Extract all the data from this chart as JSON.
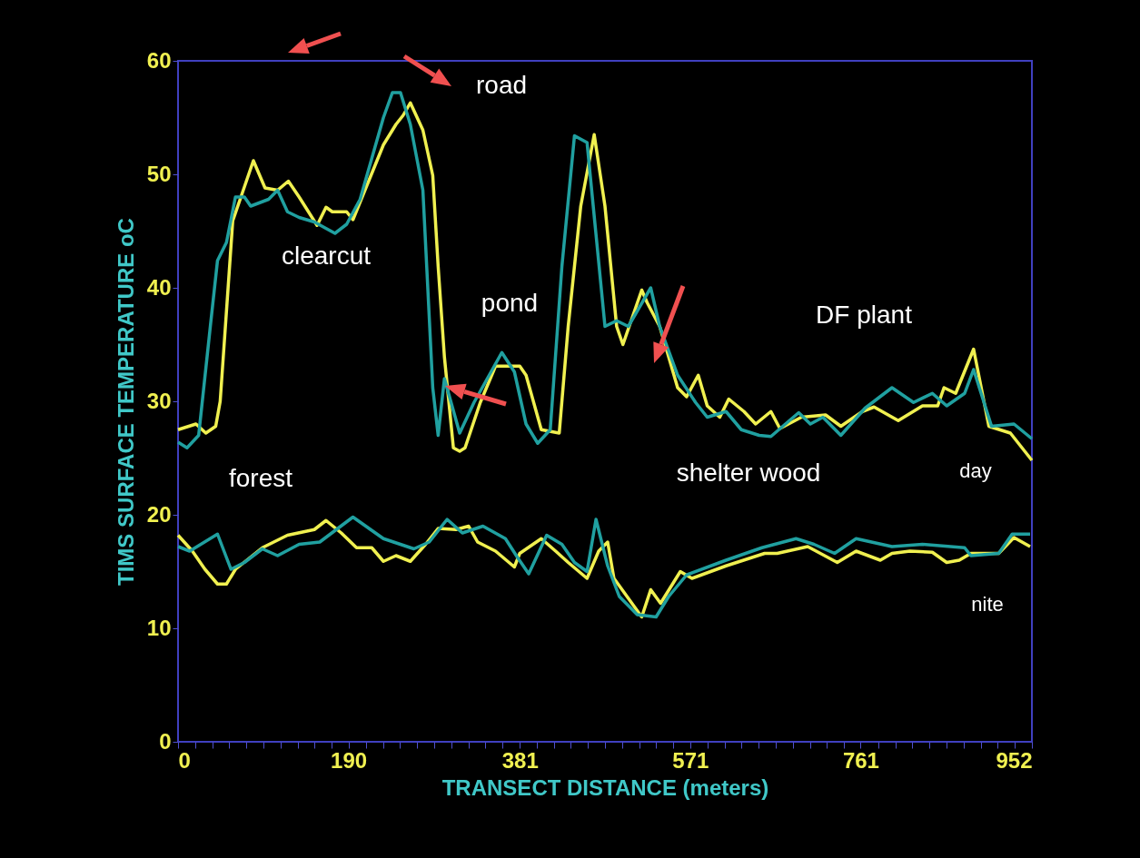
{
  "chart_data": {
    "type": "line",
    "xlabel": "TRANSECT DISTANCE (meters)",
    "ylabel": "TIMS SURFACE TEMPERATURE oC",
    "xlim": [
      0,
      952
    ],
    "ylim": [
      0,
      60
    ],
    "xticks": [
      0,
      {
        "value": 19.04,
        "label": null
      },
      {
        "value": 38.08,
        "label": null
      },
      {
        "value": 57.12,
        "label": null
      },
      {
        "value": 76.16,
        "label": null
      },
      {
        "value": 95.2,
        "label": null
      },
      {
        "value": 114.24,
        "label": null
      },
      {
        "value": 133.28,
        "label": null
      },
      {
        "value": 152.32,
        "label": null
      },
      {
        "value": 171.36,
        "label": null
      },
      190,
      {
        "value": 209.44,
        "label": null
      },
      {
        "value": 228.48,
        "label": null
      },
      {
        "value": 247.52,
        "label": null
      },
      {
        "value": 266.56,
        "label": null
      },
      {
        "value": 285.6,
        "label": null
      },
      {
        "value": 304.64,
        "label": null
      },
      {
        "value": 323.68,
        "label": null
      },
      {
        "value": 342.72,
        "label": null
      },
      {
        "value": 361.76,
        "label": null
      },
      381,
      {
        "value": 399.84,
        "label": null
      },
      {
        "value": 418.88,
        "label": null
      },
      {
        "value": 437.92,
        "label": null
      },
      {
        "value": 456.96,
        "label": null
      },
      {
        "value": 476,
        "label": null
      },
      {
        "value": 495.04,
        "label": null
      },
      {
        "value": 514.08,
        "label": null
      },
      {
        "value": 533.12,
        "label": null
      },
      {
        "value": 552.16,
        "label": null
      },
      571,
      {
        "value": 590.24,
        "label": null
      },
      {
        "value": 609.28,
        "label": null
      },
      {
        "value": 628.32,
        "label": null
      },
      {
        "value": 647.36,
        "label": null
      },
      {
        "value": 666.4,
        "label": null
      },
      {
        "value": 685.44,
        "label": null
      },
      {
        "value": 704.48,
        "label": null
      },
      {
        "value": 723.52,
        "label": null
      },
      {
        "value": 742.56,
        "label": null
      },
      761,
      {
        "value": 780.64,
        "label": null
      },
      {
        "value": 799.68,
        "label": null
      },
      {
        "value": 818.72,
        "label": null
      },
      {
        "value": 837.76,
        "label": null
      },
      {
        "value": 856.8,
        "label": null
      },
      {
        "value": 875.84,
        "label": null
      },
      {
        "value": 894.88,
        "label": null
      },
      {
        "value": 913.92,
        "label": null
      },
      {
        "value": 932.96,
        "label": null
      },
      952
    ],
    "yticks": [
      0,
      10,
      20,
      30,
      40,
      50,
      60
    ],
    "series": [
      {
        "color": "#f0f050",
        "x": [
          0,
          20,
          31,
          42,
          47,
          61,
          84,
          97,
          111,
          123,
          135,
          155,
          165,
          172,
          188,
          195,
          229,
          243,
          251,
          259,
          273,
          284,
          290,
          297,
          307,
          314,
          320,
          337,
          354,
          381,
          388,
          405,
          425,
          435,
          449,
          464,
          476,
          489,
          496,
          517,
          523,
          537,
          543,
          557,
          567,
          580,
          590,
          604,
          614,
          631,
          644,
          661,
          671,
          695,
          722,
          739,
          763,
          776,
          803,
          830,
          847,
          854,
          867,
          887,
          904,
          928,
          952
        ],
        "values": [
          27.5,
          28,
          27.2,
          27.8,
          30,
          45.9,
          51.2,
          48.8,
          48.6,
          49.4,
          48,
          45.5,
          47.1,
          46.7,
          46.7,
          46,
          52.6,
          54.4,
          55.2,
          56.3,
          53.9,
          49.9,
          41.9,
          33.9,
          25.9,
          25.6,
          25.9,
          29.9,
          33.1,
          33.1,
          32.3,
          27.5,
          27.2,
          36.6,
          47.2,
          53.5,
          47.2,
          36.6,
          35,
          39.8,
          38.7,
          36.6,
          35,
          31.2,
          30.4,
          32.3,
          29.6,
          28.6,
          30.2,
          29.1,
          28,
          29.1,
          27.6,
          28.6,
          28.8,
          27.8,
          29.1,
          29.5,
          28.3,
          29.6,
          29.6,
          31.2,
          30.7,
          34.6,
          27.8,
          27.2,
          24.8
        ]
      },
      {
        "color": "#20a0a0",
        "x": [
          0,
          10,
          23,
          36,
          44,
          54,
          64,
          74,
          81,
          101,
          111,
          122,
          135,
          152,
          175,
          188,
          203,
          229,
          239,
          248,
          259,
          273,
          284,
          290,
          297,
          314,
          330,
          361,
          375,
          388,
          401,
          415,
          428,
          442,
          456,
          476,
          489,
          502,
          527,
          537,
          557,
          577,
          590,
          611,
          628,
          648,
          661,
          692,
          705,
          719,
          739,
          766,
          796,
          820,
          841,
          857,
          877,
          887,
          907,
          932,
          952
        ],
        "values": [
          26.4,
          25.9,
          27,
          36.6,
          42.4,
          44,
          48,
          48,
          47.2,
          47.8,
          48.6,
          46.7,
          46.2,
          45.8,
          44.8,
          45.6,
          47.8,
          55,
          57.2,
          57.2,
          54.4,
          48.6,
          31.2,
          27,
          32,
          27.2,
          29.9,
          34.3,
          32.6,
          28,
          26.3,
          27.5,
          41.9,
          53.4,
          52.8,
          36.6,
          37.1,
          36.6,
          40,
          36.6,
          32.3,
          29.9,
          28.6,
          29.1,
          27.5,
          27,
          26.9,
          29,
          28,
          28.6,
          27,
          29.4,
          31.2,
          29.9,
          30.7,
          29.6,
          30.7,
          32.8,
          27.8,
          28,
          26.7
        ]
      },
      {
        "color": "#f0f050",
        "x": [
          0,
          16,
          30,
          44,
          54,
          64,
          94,
          122,
          152,
          165,
          182,
          199,
          216,
          229,
          243,
          259,
          276,
          290,
          310,
          324,
          334,
          354,
          375,
          381,
          405,
          421,
          435,
          456,
          469,
          479,
          486,
          517,
          527,
          538,
          560,
          573,
          611,
          654,
          668,
          702,
          735,
          756,
          783,
          796,
          816,
          841,
          857,
          871,
          884,
          915,
          932,
          950
        ],
        "values": [
          18.2,
          16.8,
          15.2,
          13.9,
          13.9,
          15.2,
          17.1,
          18.2,
          18.7,
          19.5,
          18.4,
          17.1,
          17.1,
          15.9,
          16.4,
          15.9,
          17.4,
          18.8,
          18.7,
          19,
          17.6,
          16.8,
          15.4,
          16.6,
          17.9,
          16.8,
          15.8,
          14.4,
          16.8,
          17.6,
          14.4,
          11,
          13.4,
          12.2,
          15,
          14.4,
          15.5,
          16.6,
          16.6,
          17.2,
          15.8,
          16.8,
          16,
          16.6,
          16.8,
          16.7,
          15.8,
          16,
          16.6,
          16.6,
          18,
          17.2
        ]
      },
      {
        "color": "#20a0a0",
        "x": [
          0,
          13,
          44,
          59,
          74,
          94,
          111,
          135,
          158,
          195,
          229,
          263,
          280,
          300,
          317,
          340,
          365,
          378,
          391,
          411,
          428,
          442,
          456,
          466,
          479,
          492,
          512,
          533,
          547,
          567,
          611,
          651,
          689,
          709,
          732,
          756,
          796,
          830,
          877,
          884,
          915,
          930,
          950
        ],
        "values": [
          17.2,
          16.8,
          18.3,
          15.2,
          15.8,
          17,
          16.4,
          17.4,
          17.6,
          19.8,
          17.9,
          17,
          17.6,
          19.6,
          18.4,
          19,
          17.9,
          16.3,
          14.8,
          18.2,
          17.4,
          15.8,
          15,
          19.6,
          15.5,
          12.8,
          11.2,
          11,
          12.8,
          14.7,
          16,
          17.1,
          17.9,
          17.4,
          16.6,
          17.9,
          17.2,
          17.4,
          17.1,
          16.4,
          16.6,
          18.3,
          18.3
        ]
      }
    ],
    "annotations": [
      "road",
      "clearcut",
      "pond",
      "forest",
      "shelter wood",
      "DF plant",
      "day",
      "nite"
    ]
  }
}
